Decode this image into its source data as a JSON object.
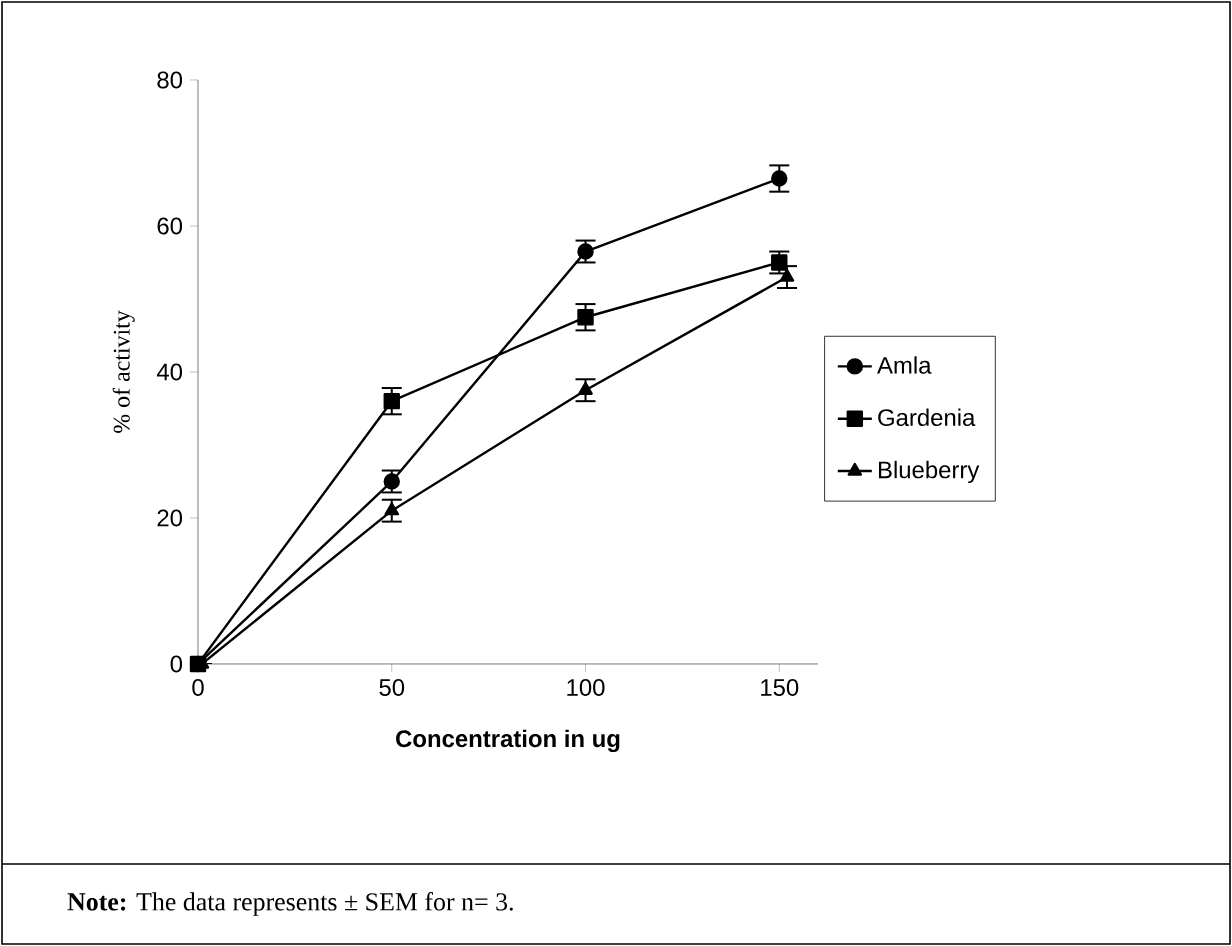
{
  "chart_data": {
    "type": "line",
    "xlabel": "Concentration in ug",
    "ylabel": "% of activity",
    "x": [
      0,
      50,
      100,
      150
    ],
    "xlim": [
      0,
      160
    ],
    "ylim": [
      0,
      80
    ],
    "xticks": [
      0,
      50,
      100,
      150
    ],
    "yticks": [
      0,
      20,
      40,
      60,
      80
    ],
    "grid": false,
    "legend": "right",
    "line_style": "solid",
    "series": [
      {
        "name": "Amla",
        "color": "#000000",
        "marker": "circle",
        "values": [
          0,
          25,
          56.5,
          66.5
        ],
        "errors": [
          null,
          1.5,
          1.5,
          1.8
        ]
      },
      {
        "name": "Gardenia",
        "color": "#000000",
        "marker": "square",
        "values": [
          0,
          36,
          47.5,
          55
        ],
        "errors": [
          null,
          1.8,
          1.8,
          1.5
        ]
      },
      {
        "name": "Blueberry",
        "color": "#000000",
        "marker": "triangle",
        "x": [
          1,
          50,
          100,
          152
        ],
        "values": [
          0,
          21,
          37.5,
          53
        ],
        "errors": [
          null,
          1.5,
          1.5,
          1.5
        ]
      }
    ],
    "annotations": [
      "**Note:** The data represents ± SEM for n= 3."
    ]
  }
}
